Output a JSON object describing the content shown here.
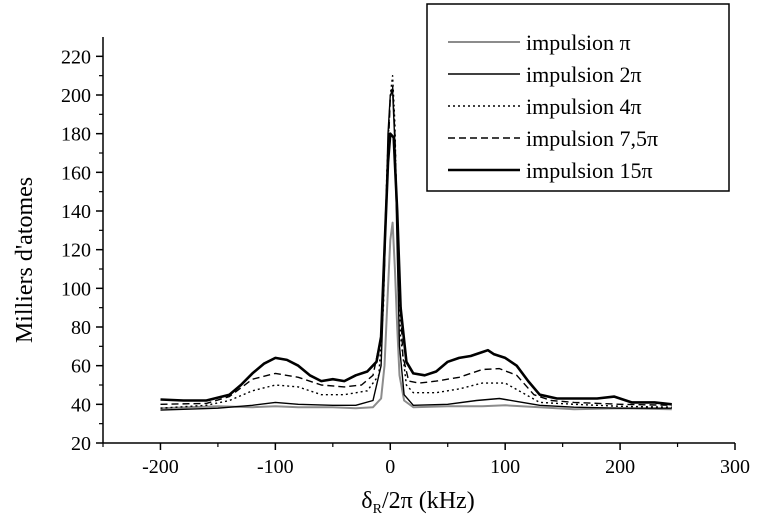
{
  "chart_data": {
    "type": "line",
    "xlabel": {
      "main": "δ",
      "sub": "R",
      "rest": "/2π (kHz)"
    },
    "ylabel": "Milliers d'atomes",
    "xlim": [
      -250,
      300
    ],
    "ylim": [
      20,
      230
    ],
    "xticks": [
      -200,
      -100,
      0,
      100,
      200,
      300
    ],
    "xtick_labels": [
      "-200",
      "-100",
      "0",
      "100",
      "200",
      "300"
    ],
    "yticks": [
      20,
      40,
      60,
      80,
      100,
      120,
      140,
      160,
      180,
      200,
      220
    ],
    "ytick_labels": [
      "20",
      "40",
      "60",
      "80",
      "100",
      "120",
      "140",
      "160",
      "180",
      "200",
      "220"
    ],
    "legend_position": "top-right",
    "series": [
      {
        "name": "impulsion π",
        "color": "#8c8c8c",
        "width": 2,
        "dash": "",
        "points": [
          [
            -200,
            38
          ],
          [
            -150,
            39
          ],
          [
            -120,
            38.5
          ],
          [
            -100,
            39
          ],
          [
            -80,
            38.5
          ],
          [
            -50,
            38.5
          ],
          [
            -30,
            38
          ],
          [
            -15,
            38.5
          ],
          [
            -8,
            43
          ],
          [
            -5,
            60
          ],
          [
            -2,
            100
          ],
          [
            0,
            125
          ],
          [
            2,
            134
          ],
          [
            4,
            110
          ],
          [
            6,
            80
          ],
          [
            8,
            55
          ],
          [
            12,
            42
          ],
          [
            20,
            38.5
          ],
          [
            50,
            39
          ],
          [
            80,
            39
          ],
          [
            100,
            39.5
          ],
          [
            130,
            38.5
          ],
          [
            160,
            37.5
          ],
          [
            200,
            38
          ],
          [
            245,
            37.5
          ]
        ]
      },
      {
        "name": "impulsion 2π",
        "color": "#000000",
        "width": 1.4,
        "dash": "",
        "points": [
          [
            -200,
            37
          ],
          [
            -150,
            38
          ],
          [
            -120,
            39.5
          ],
          [
            -100,
            41
          ],
          [
            -80,
            40
          ],
          [
            -50,
            39.5
          ],
          [
            -30,
            39.5
          ],
          [
            -15,
            42
          ],
          [
            -8,
            60
          ],
          [
            -5,
            110
          ],
          [
            -2,
            180
          ],
          [
            0,
            200
          ],
          [
            2,
            202
          ],
          [
            4,
            175
          ],
          [
            6,
            120
          ],
          [
            8,
            70
          ],
          [
            12,
            45
          ],
          [
            20,
            39.5
          ],
          [
            50,
            40
          ],
          [
            75,
            42
          ],
          [
            95,
            43
          ],
          [
            110,
            41.5
          ],
          [
            130,
            39.5
          ],
          [
            160,
            38.5
          ],
          [
            200,
            38
          ],
          [
            245,
            38
          ]
        ]
      },
      {
        "name": "impulsion 4π",
        "color": "#000000",
        "width": 1.4,
        "dash": "2,3",
        "points": [
          [
            -200,
            38
          ],
          [
            -160,
            39.5
          ],
          [
            -140,
            42
          ],
          [
            -120,
            47
          ],
          [
            -100,
            50
          ],
          [
            -80,
            49
          ],
          [
            -60,
            45
          ],
          [
            -40,
            45
          ],
          [
            -20,
            47
          ],
          [
            -10,
            55
          ],
          [
            -6,
            90
          ],
          [
            -3,
            160
          ],
          [
            0,
            200
          ],
          [
            2,
            210
          ],
          [
            4,
            185
          ],
          [
            6,
            130
          ],
          [
            9,
            75
          ],
          [
            14,
            50
          ],
          [
            20,
            46
          ],
          [
            40,
            46
          ],
          [
            60,
            48
          ],
          [
            80,
            51
          ],
          [
            100,
            51
          ],
          [
            115,
            46
          ],
          [
            130,
            41
          ],
          [
            160,
            40
          ],
          [
            200,
            39
          ],
          [
            245,
            38.5
          ]
        ]
      },
      {
        "name": "impulsion 7,5π",
        "color": "#000000",
        "width": 1.4,
        "dash": "7,4",
        "points": [
          [
            -200,
            40
          ],
          [
            -160,
            40.5
          ],
          [
            -140,
            44
          ],
          [
            -120,
            53
          ],
          [
            -100,
            56
          ],
          [
            -80,
            54
          ],
          [
            -60,
            50
          ],
          [
            -40,
            49
          ],
          [
            -25,
            50
          ],
          [
            -15,
            55
          ],
          [
            -8,
            75
          ],
          [
            -4,
            140
          ],
          [
            0,
            198
          ],
          [
            2,
            205
          ],
          [
            4,
            180
          ],
          [
            7,
            115
          ],
          [
            11,
            65
          ],
          [
            16,
            52
          ],
          [
            25,
            51
          ],
          [
            40,
            52
          ],
          [
            60,
            54
          ],
          [
            80,
            58
          ],
          [
            95,
            58.5
          ],
          [
            110,
            55
          ],
          [
            125,
            45
          ],
          [
            140,
            42
          ],
          [
            160,
            41
          ],
          [
            200,
            40
          ],
          [
            245,
            39.5
          ]
        ]
      },
      {
        "name": "impulsion 15π",
        "color": "#000000",
        "width": 2.6,
        "dash": "",
        "points": [
          [
            -200,
            42.5
          ],
          [
            -180,
            42
          ],
          [
            -160,
            42
          ],
          [
            -140,
            45
          ],
          [
            -130,
            50
          ],
          [
            -120,
            56
          ],
          [
            -110,
            61
          ],
          [
            -100,
            64
          ],
          [
            -90,
            63
          ],
          [
            -80,
            60
          ],
          [
            -70,
            55
          ],
          [
            -60,
            52
          ],
          [
            -50,
            53
          ],
          [
            -40,
            52
          ],
          [
            -30,
            55
          ],
          [
            -20,
            57
          ],
          [
            -12,
            62
          ],
          [
            -8,
            75
          ],
          [
            -5,
            120
          ],
          [
            -2,
            165
          ],
          [
            0,
            180
          ],
          [
            3,
            178
          ],
          [
            6,
            140
          ],
          [
            9,
            90
          ],
          [
            14,
            62
          ],
          [
            20,
            56
          ],
          [
            30,
            55
          ],
          [
            40,
            57
          ],
          [
            50,
            62
          ],
          [
            60,
            64
          ],
          [
            70,
            65
          ],
          [
            80,
            67
          ],
          [
            85,
            68
          ],
          [
            90,
            66
          ],
          [
            100,
            64
          ],
          [
            110,
            60
          ],
          [
            120,
            52
          ],
          [
            130,
            45
          ],
          [
            145,
            43
          ],
          [
            160,
            43
          ],
          [
            180,
            43
          ],
          [
            195,
            44
          ],
          [
            210,
            41
          ],
          [
            230,
            41
          ],
          [
            245,
            40
          ]
        ]
      }
    ]
  }
}
